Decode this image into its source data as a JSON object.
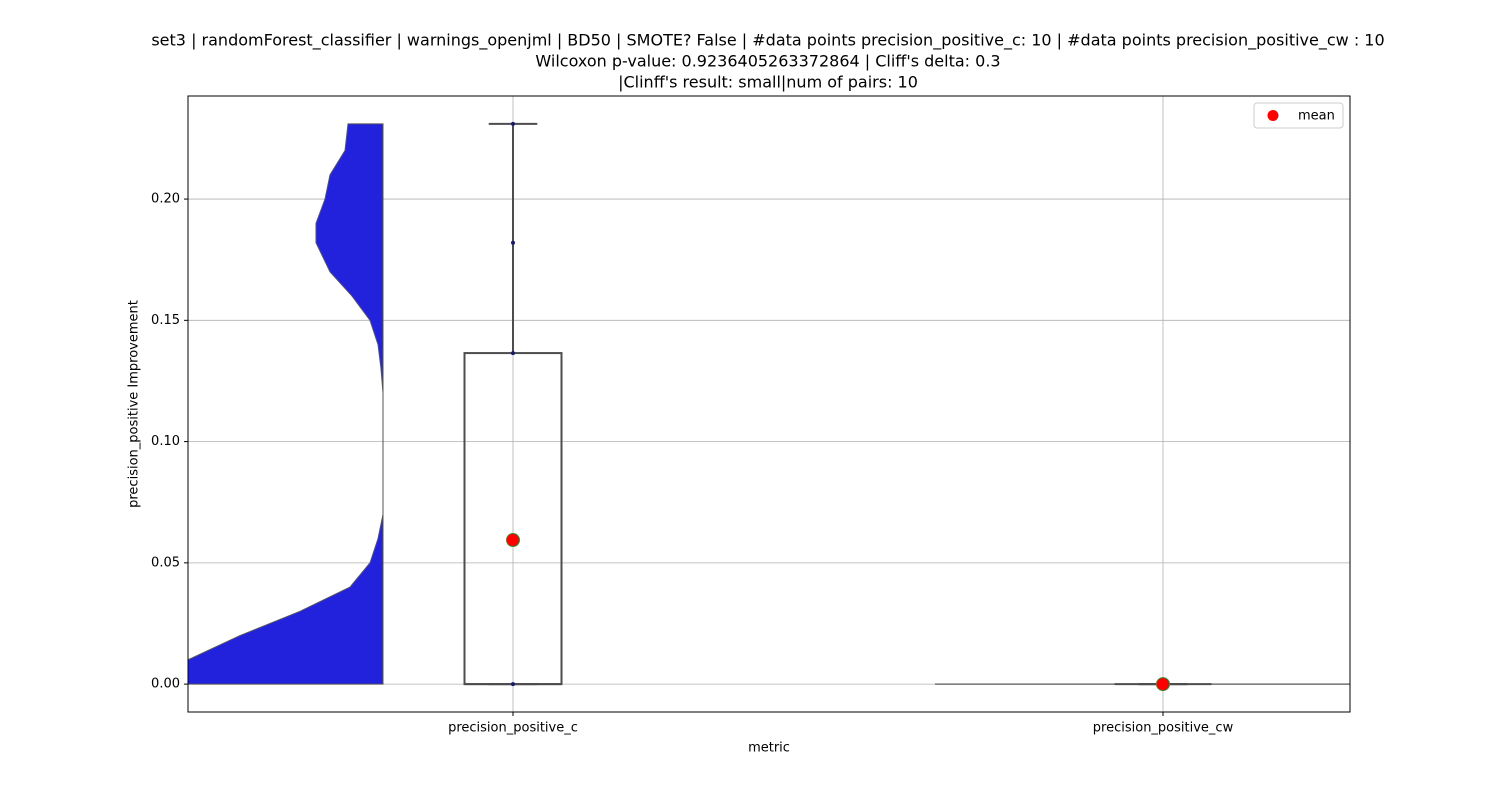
{
  "chart_data": {
    "type": "violin-box",
    "title": [
      "set3 | randomForest_classifier | warnings_openjml | BD50 | SMOTE? False | #data points precision_positive_c: 10 | #data points precision_positive_cw : 10",
      "Wilcoxon p-value: 0.9236405263372864 | Cliff's delta: 0.3",
      "|Clinff's result: small|num of pairs: 10"
    ],
    "x_label": "metric",
    "y_label": "precision_positive Improvement",
    "categories": [
      "precision_positive_c",
      "precision_positive_cw"
    ],
    "ylim": [
      -0.0115,
      0.2425
    ],
    "yticks": [
      {
        "value": 0,
        "label": "0.00"
      },
      {
        "value": 0.05,
        "label": "0.05"
      },
      {
        "value": 0.1,
        "label": "0.10"
      },
      {
        "value": 0.15,
        "label": "0.15"
      },
      {
        "value": 0.2,
        "label": "0.20"
      }
    ],
    "grid": true,
    "legend_position": "upper right",
    "legend_label": "mean",
    "violin_color": "#2222dd",
    "box_color": "#4d4d4d",
    "mean_color": "#ff0000",
    "point_color": "#1a1a6e",
    "violins": [
      {
        "y": [
          0,
          0.01,
          0.02,
          0.03,
          0.04,
          0.05,
          0.06,
          0.07,
          0.1,
          0.12,
          0.13,
          0.14,
          0.15,
          0.16,
          0.17,
          0.182,
          0.19,
          0.2,
          0.21,
          0.22,
          0.231
        ],
        "density": [
          26,
          19.5,
          14.3,
          8.3,
          3.3,
          1.3,
          0.5,
          0,
          0,
          0,
          0.2,
          0.5,
          1.3,
          3.1,
          5.3,
          6.7,
          6.7,
          5.8,
          5.3,
          3.8,
          3.5
        ]
      },
      {
        "y": [
          0
        ],
        "density": [
          9.8
        ]
      }
    ],
    "boxes": [
      {
        "q1": 0,
        "median": 0,
        "q3": 0.1365,
        "whisker_low": 0,
        "whisker_high": 0.231,
        "mean": 0.0594,
        "points": [
          0.231,
          0.182,
          0.1365,
          0
        ]
      },
      {
        "q1": 0,
        "median": 0,
        "q3": 0,
        "whisker_low": 0,
        "whisker_high": 0,
        "mean": 0,
        "points": [
          0
        ]
      }
    ]
  }
}
